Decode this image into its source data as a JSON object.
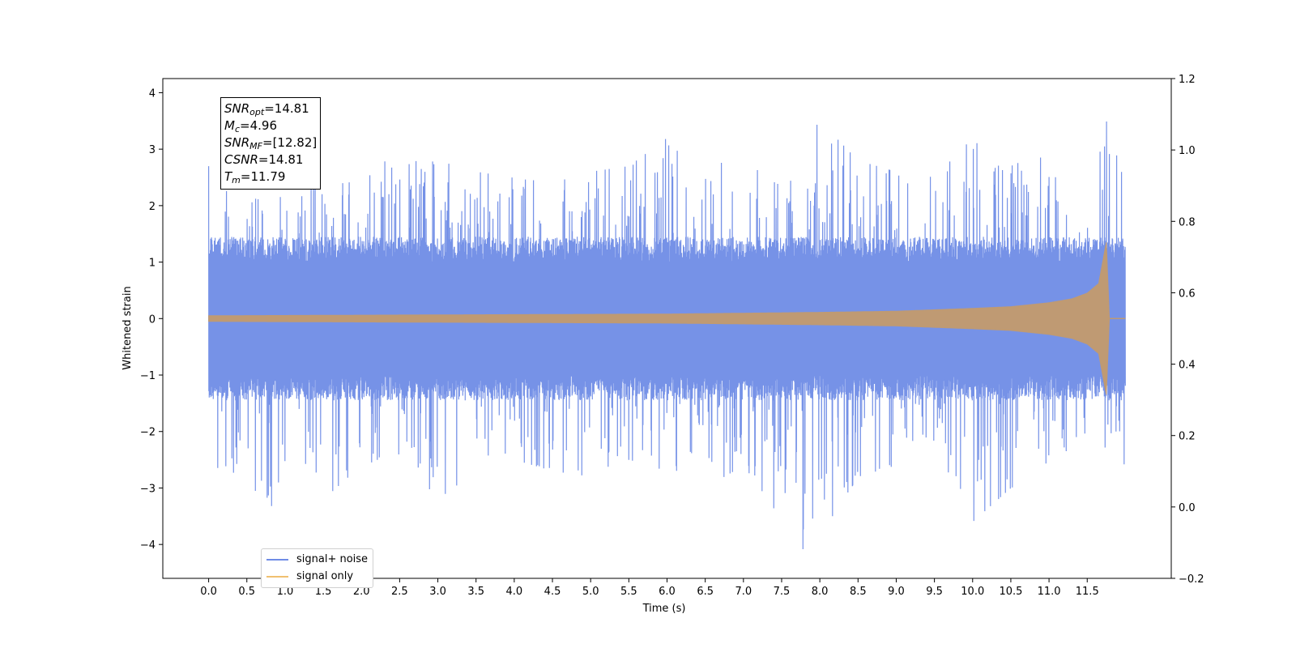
{
  "chart_data": {
    "type": "line",
    "xlabel": "Time (s)",
    "ylabel": "Whitened strain",
    "xlim": [
      -0.6,
      12.6
    ],
    "ylim": [
      -4.6,
      4.25
    ],
    "y2lim": [
      -0.2,
      1.2
    ],
    "x_ticks": [
      "0.0",
      "0.5",
      "1.0",
      "1.5",
      "2.0",
      "2.5",
      "3.0",
      "3.5",
      "4.0",
      "4.5",
      "5.0",
      "5.5",
      "6.0",
      "6.5",
      "7.0",
      "7.5",
      "8.0",
      "8.5",
      "9.0",
      "9.5",
      "10.0",
      "10.5",
      "11.0",
      "11.5"
    ],
    "y_ticks": [
      "4",
      "3",
      "2",
      "1",
      "0",
      "−1",
      "−2",
      "−3",
      "−4"
    ],
    "y2_ticks": [
      "1.2",
      "1.0",
      "0.8",
      "0.6",
      "0.4",
      "0.2",
      "0.0",
      "−0.2"
    ],
    "grid": false,
    "legend_position": "lower-left",
    "series": [
      {
        "name": "signal+ noise",
        "color": "#6f8ce6",
        "x_range": [
          0.0,
          12.0
        ],
        "envelope_top": [
          [
            0.0,
            2.7
          ],
          [
            0.5,
            2.2
          ],
          [
            1.0,
            2.6
          ],
          [
            1.5,
            2.5
          ],
          [
            2.0,
            2.4
          ],
          [
            2.4,
            2.9
          ],
          [
            3.0,
            2.8
          ],
          [
            3.5,
            2.6
          ],
          [
            4.0,
            2.5
          ],
          [
            4.5,
            2.4
          ],
          [
            5.0,
            2.6
          ],
          [
            5.5,
            2.7
          ],
          [
            6.0,
            3.2
          ],
          [
            6.5,
            2.8
          ],
          [
            7.0,
            2.7
          ],
          [
            7.5,
            2.6
          ],
          [
            8.0,
            3.5
          ],
          [
            8.5,
            2.8
          ],
          [
            9.0,
            2.6
          ],
          [
            9.5,
            2.5
          ],
          [
            10.0,
            3.2
          ],
          [
            10.5,
            2.7
          ],
          [
            11.0,
            3.0
          ],
          [
            11.5,
            2.6
          ],
          [
            11.75,
            3.8
          ],
          [
            12.0,
            2.5
          ]
        ],
        "envelope_bottom": [
          [
            0.0,
            -2.6
          ],
          [
            0.5,
            -2.8
          ],
          [
            0.85,
            -3.6
          ],
          [
            1.0,
            -2.5
          ],
          [
            1.5,
            -3.2
          ],
          [
            2.0,
            -2.6
          ],
          [
            2.5,
            -2.4
          ],
          [
            3.0,
            -3.2
          ],
          [
            3.5,
            -2.7
          ],
          [
            4.0,
            -2.5
          ],
          [
            4.5,
            -2.7
          ],
          [
            5.0,
            -2.8
          ],
          [
            5.5,
            -2.5
          ],
          [
            6.0,
            -2.7
          ],
          [
            6.5,
            -3.0
          ],
          [
            7.0,
            -2.6
          ],
          [
            7.5,
            -3.7
          ],
          [
            7.7,
            -4.2
          ],
          [
            8.0,
            -3.9
          ],
          [
            8.5,
            -2.8
          ],
          [
            9.0,
            -2.6
          ],
          [
            9.5,
            -2.8
          ],
          [
            10.0,
            -3.6
          ],
          [
            10.5,
            -3.0
          ],
          [
            11.0,
            -2.7
          ],
          [
            11.5,
            -2.5
          ],
          [
            12.0,
            -2.6
          ]
        ]
      },
      {
        "name": "signal only",
        "color": "#f0a830",
        "x_range": [
          0.0,
          11.79
        ],
        "amplitude": [
          [
            0.0,
            0.05
          ],
          [
            2.0,
            0.06
          ],
          [
            4.0,
            0.07
          ],
          [
            6.0,
            0.08
          ],
          [
            8.0,
            0.11
          ],
          [
            9.0,
            0.13
          ],
          [
            10.0,
            0.18
          ],
          [
            10.5,
            0.21
          ],
          [
            11.0,
            0.28
          ],
          [
            11.3,
            0.35
          ],
          [
            11.5,
            0.45
          ],
          [
            11.65,
            0.62
          ],
          [
            11.75,
            1.35
          ],
          [
            11.79,
            0.0
          ],
          [
            12.0,
            0.0
          ]
        ]
      }
    ]
  },
  "annotation": {
    "snr_opt_label": "SNR",
    "snr_opt_sub": "opt",
    "snr_opt_value": "=14.81",
    "mc_label": "M",
    "mc_sub": "c",
    "mc_value": "=4.96",
    "snr_mf_label": "SNR",
    "snr_mf_sub": "MF",
    "snr_mf_value": "=[12.82]",
    "csnr_label": "CSNR",
    "csnr_value": "=14.81",
    "tm_label": "T",
    "tm_sub": "m",
    "tm_value": "=11.79"
  },
  "legend": {
    "items": [
      {
        "label": "signal+ noise",
        "color": "#6f8ce6"
      },
      {
        "label": "signal only",
        "color": "#f0c070"
      }
    ]
  }
}
